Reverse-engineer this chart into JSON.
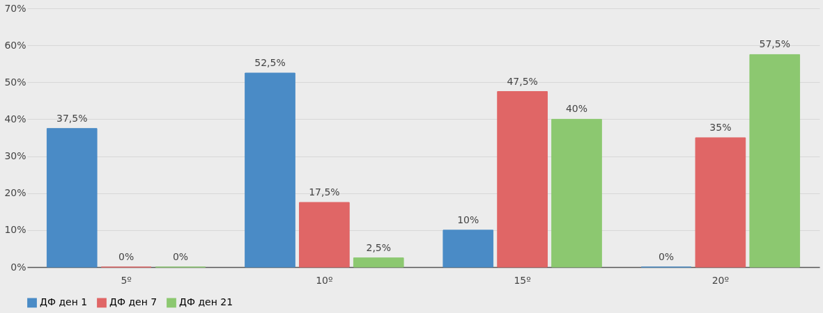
{
  "chart_data": {
    "type": "bar",
    "categories": [
      "5º",
      "10º",
      "15º",
      "20º"
    ],
    "series": [
      {
        "name": "ДФ ден 1",
        "color": "#4a8bc6",
        "values": [
          37.5,
          52.5,
          10,
          0
        ],
        "value_labels": [
          "37,5%",
          "52,5%",
          "10%",
          "0%"
        ]
      },
      {
        "name": "ДФ ден 7",
        "color": "#e06666",
        "values": [
          0,
          17.5,
          47.5,
          35
        ],
        "value_labels": [
          "0%",
          "17,5%",
          "47,5%",
          "35%"
        ]
      },
      {
        "name": "ДФ ден 21",
        "color": "#8cc870",
        "values": [
          0,
          2.5,
          40,
          57.5
        ],
        "value_labels": [
          "0%",
          "2,5%",
          "40%",
          "57,5%"
        ]
      }
    ],
    "ylim": [
      0,
      70
    ],
    "yticks": [
      {
        "value": 0,
        "label": "0%"
      },
      {
        "value": 10,
        "label": "10%"
      },
      {
        "value": 20,
        "label": "20%"
      },
      {
        "value": 30,
        "label": "30%"
      },
      {
        "value": 40,
        "label": "40%"
      },
      {
        "value": 50,
        "label": "50%"
      },
      {
        "value": 60,
        "label": "60%"
      },
      {
        "value": 70,
        "label": "70%"
      }
    ],
    "grid": "y",
    "legend": "bottom"
  }
}
